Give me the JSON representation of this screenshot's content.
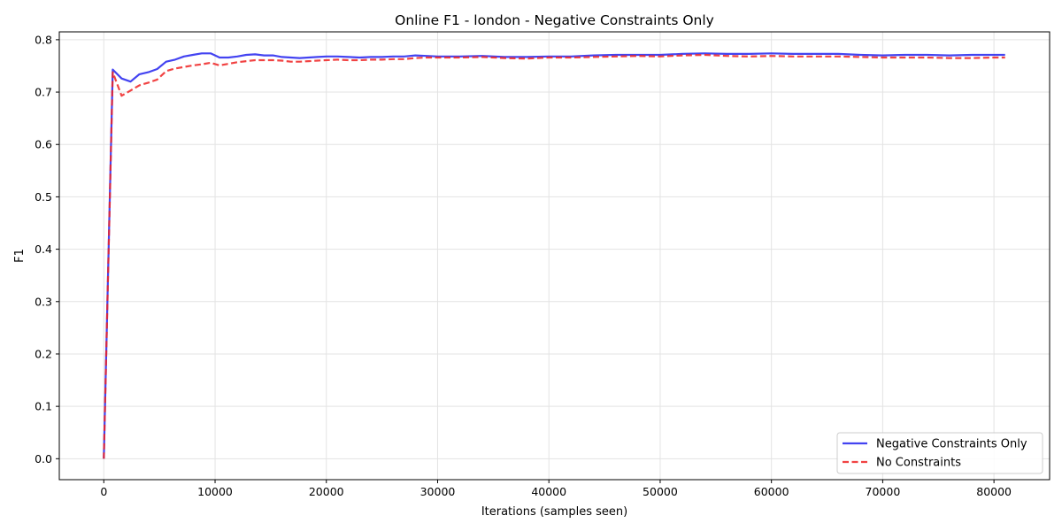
{
  "chart_data": {
    "type": "line",
    "title": "Online F1 - london - Negative Constraints Only",
    "xlabel": "Iterations (samples seen)",
    "ylabel": "F1",
    "xlim": [
      -4000,
      85000
    ],
    "ylim": [
      -0.04,
      0.815
    ],
    "xticks": [
      0,
      10000,
      20000,
      30000,
      40000,
      50000,
      60000,
      70000,
      80000
    ],
    "yticks": [
      0.0,
      0.1,
      0.2,
      0.3,
      0.4,
      0.5,
      0.6,
      0.7,
      0.8
    ],
    "xtick_labels": [
      "0",
      "10000",
      "20000",
      "30000",
      "40000",
      "50000",
      "60000",
      "70000",
      "80000"
    ],
    "ytick_labels": [
      "0.0",
      "0.1",
      "0.2",
      "0.3",
      "0.4",
      "0.5",
      "0.6",
      "0.7",
      "0.8"
    ],
    "grid": true,
    "legend_position": "bottom-right",
    "series": [
      {
        "name": "Negative Constraints Only",
        "color": "#2222ee",
        "style": "solid",
        "x": [
          0,
          800,
          1600,
          2400,
          3200,
          4000,
          4800,
          5600,
          6400,
          7200,
          8000,
          8800,
          9600,
          10400,
          11200,
          12000,
          12800,
          13600,
          14400,
          15200,
          16000,
          16800,
          17600,
          18400,
          19200,
          20000,
          21000,
          22000,
          23000,
          24000,
          25000,
          26000,
          27000,
          28000,
          29000,
          30000,
          32000,
          34000,
          36000,
          38000,
          40000,
          42000,
          44000,
          46000,
          48000,
          50000,
          52000,
          54000,
          56000,
          58000,
          60000,
          62000,
          64000,
          66000,
          68000,
          70000,
          72000,
          74000,
          76000,
          78000,
          80000,
          81000
        ],
        "y": [
          0.0,
          0.743,
          0.726,
          0.72,
          0.734,
          0.738,
          0.744,
          0.758,
          0.762,
          0.768,
          0.771,
          0.774,
          0.774,
          0.766,
          0.766,
          0.768,
          0.771,
          0.772,
          0.77,
          0.77,
          0.767,
          0.766,
          0.765,
          0.766,
          0.767,
          0.768,
          0.768,
          0.767,
          0.766,
          0.767,
          0.767,
          0.768,
          0.768,
          0.77,
          0.769,
          0.768,
          0.768,
          0.769,
          0.767,
          0.767,
          0.768,
          0.768,
          0.77,
          0.771,
          0.771,
          0.771,
          0.773,
          0.774,
          0.773,
          0.773,
          0.774,
          0.773,
          0.773,
          0.773,
          0.771,
          0.77,
          0.771,
          0.771,
          0.77,
          0.771,
          0.771,
          0.771
        ]
      },
      {
        "name": "No Constraints",
        "color": "#ee2222",
        "style": "dashed",
        "x": [
          0,
          800,
          1600,
          2400,
          3200,
          4000,
          4800,
          5600,
          6400,
          7200,
          8000,
          8800,
          9600,
          10400,
          11200,
          12000,
          12800,
          13600,
          14400,
          15200,
          16000,
          16800,
          17600,
          18400,
          19200,
          20000,
          21000,
          22000,
          23000,
          24000,
          25000,
          26000,
          27000,
          28000,
          29000,
          30000,
          32000,
          34000,
          36000,
          38000,
          40000,
          42000,
          44000,
          46000,
          48000,
          50000,
          52000,
          54000,
          56000,
          58000,
          60000,
          62000,
          64000,
          66000,
          68000,
          70000,
          72000,
          74000,
          76000,
          78000,
          80000,
          81000
        ],
        "y": [
          0.0,
          0.738,
          0.693,
          0.703,
          0.713,
          0.718,
          0.724,
          0.74,
          0.745,
          0.748,
          0.751,
          0.753,
          0.756,
          0.751,
          0.754,
          0.757,
          0.759,
          0.761,
          0.761,
          0.761,
          0.76,
          0.758,
          0.758,
          0.759,
          0.76,
          0.761,
          0.762,
          0.761,
          0.761,
          0.762,
          0.762,
          0.763,
          0.763,
          0.765,
          0.766,
          0.766,
          0.766,
          0.767,
          0.765,
          0.764,
          0.766,
          0.766,
          0.767,
          0.768,
          0.769,
          0.768,
          0.77,
          0.771,
          0.769,
          0.768,
          0.769,
          0.768,
          0.768,
          0.768,
          0.767,
          0.766,
          0.766,
          0.766,
          0.765,
          0.765,
          0.766,
          0.766
        ]
      }
    ]
  }
}
